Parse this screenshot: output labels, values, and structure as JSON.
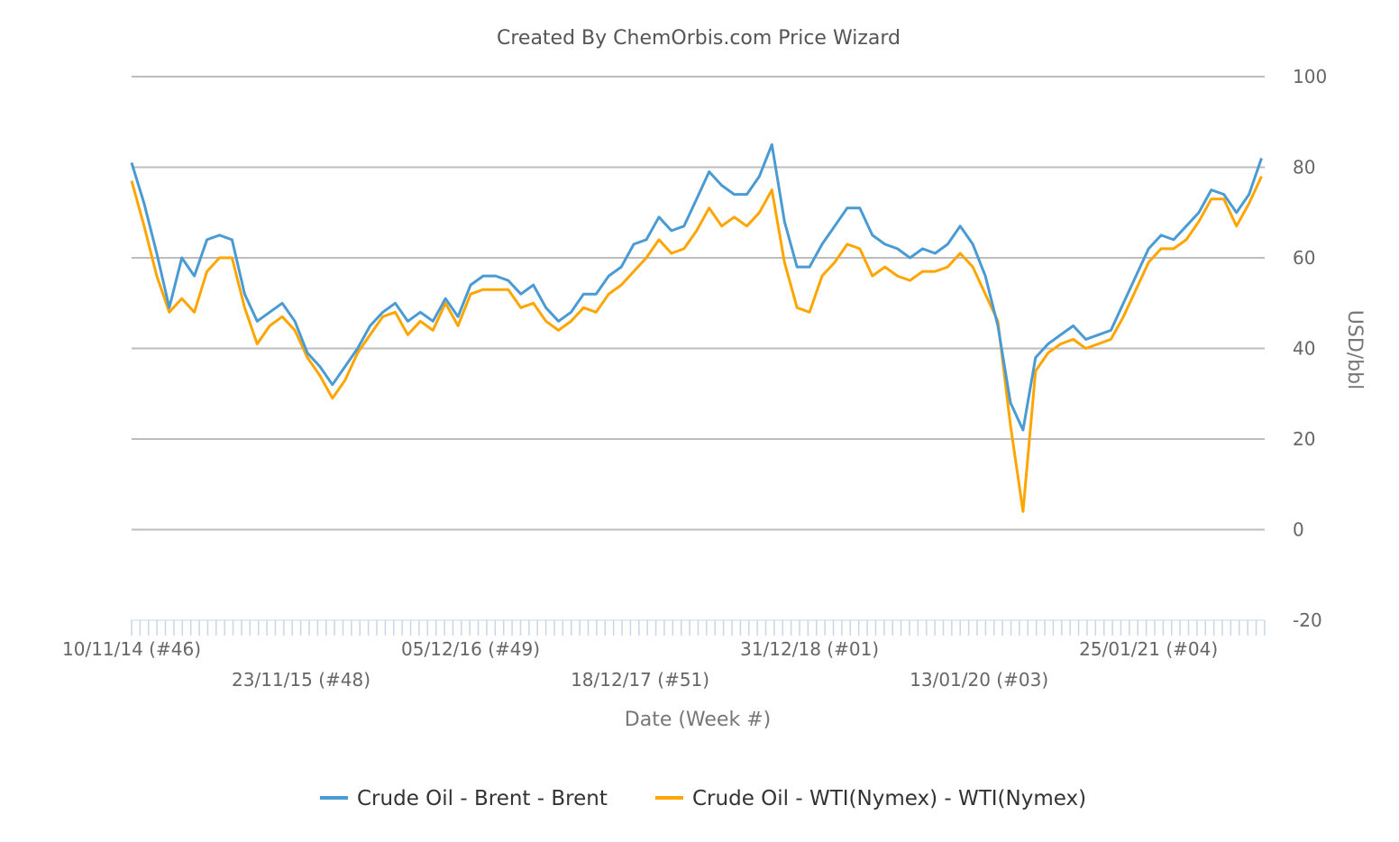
{
  "chart_data": {
    "type": "line",
    "title": "Created By ChemOrbis.com Price Wizard",
    "xlabel": "Date (Week #)",
    "ylabel": "USD/bbl",
    "ylim": [
      -20,
      100
    ],
    "yticks": [
      -20,
      0,
      20,
      40,
      60,
      80,
      100
    ],
    "xlim": [
      "2014-11-10",
      "2021-10-11"
    ],
    "xtick_labels": [
      {
        "date": "2014-11-10",
        "label": "10/11/14 (#46)"
      },
      {
        "date": "2015-11-23",
        "label": "23/11/15 (#48)"
      },
      {
        "date": "2016-12-05",
        "label": "05/12/16 (#49)"
      },
      {
        "date": "2017-12-18",
        "label": "18/12/17 (#51)"
      },
      {
        "date": "2018-12-31",
        "label": "31/12/18 (#01)"
      },
      {
        "date": "2020-01-13",
        "label": "13/01/20 (#03)"
      },
      {
        "date": "2021-01-25",
        "label": "25/01/21 (#04)"
      }
    ],
    "grid": true,
    "y_axis_position": "right",
    "legend_position": "bottom",
    "x": [
      "2014-11-10",
      "2014-12-08",
      "2015-01-05",
      "2015-02-02",
      "2015-03-02",
      "2015-03-30",
      "2015-04-27",
      "2015-05-25",
      "2015-06-22",
      "2015-07-20",
      "2015-08-17",
      "2015-09-14",
      "2015-10-12",
      "2015-11-09",
      "2015-12-07",
      "2016-01-04",
      "2016-02-01",
      "2016-02-29",
      "2016-03-28",
      "2016-04-25",
      "2016-05-23",
      "2016-06-20",
      "2016-07-18",
      "2016-08-15",
      "2016-09-12",
      "2016-10-10",
      "2016-11-07",
      "2016-12-05",
      "2017-01-02",
      "2017-01-30",
      "2017-02-27",
      "2017-03-27",
      "2017-04-24",
      "2017-05-22",
      "2017-06-19",
      "2017-07-17",
      "2017-08-14",
      "2017-09-11",
      "2017-10-09",
      "2017-11-06",
      "2017-12-04",
      "2018-01-01",
      "2018-01-29",
      "2018-02-26",
      "2018-03-26",
      "2018-04-23",
      "2018-05-21",
      "2018-06-18",
      "2018-07-16",
      "2018-08-13",
      "2018-09-10",
      "2018-10-08",
      "2018-11-05",
      "2018-12-03",
      "2018-12-31",
      "2019-01-28",
      "2019-02-25",
      "2019-03-25",
      "2019-04-22",
      "2019-05-20",
      "2019-06-17",
      "2019-07-15",
      "2019-08-12",
      "2019-09-09",
      "2019-10-07",
      "2019-11-04",
      "2019-12-02",
      "2019-12-30",
      "2020-01-27",
      "2020-02-24",
      "2020-03-23",
      "2020-04-20",
      "2020-05-18",
      "2020-06-15",
      "2020-07-13",
      "2020-08-10",
      "2020-09-07",
      "2020-10-05",
      "2020-11-02",
      "2020-11-30",
      "2020-12-28",
      "2021-01-25",
      "2021-02-22",
      "2021-03-22",
      "2021-04-19",
      "2021-05-17",
      "2021-06-14",
      "2021-07-12",
      "2021-08-09",
      "2021-09-06",
      "2021-10-04"
    ],
    "series": [
      {
        "name": "Crude Oil - Brent - Brent",
        "color": "#4a9ad4",
        "values": [
          81,
          72,
          61,
          49,
          60,
          56,
          64,
          65,
          64,
          52,
          46,
          48,
          50,
          46,
          39,
          36,
          32,
          36,
          40,
          45,
          48,
          50,
          46,
          48,
          46,
          51,
          47,
          54,
          56,
          56,
          55,
          52,
          54,
          49,
          46,
          48,
          52,
          52,
          56,
          58,
          63,
          64,
          69,
          66,
          67,
          73,
          79,
          76,
          74,
          74,
          78,
          85,
          68,
          58,
          58,
          63,
          67,
          71,
          71,
          65,
          63,
          62,
          60,
          62,
          61,
          63,
          67,
          63,
          56,
          45,
          28,
          22,
          38,
          41,
          43,
          45,
          42,
          43,
          44,
          50,
          56,
          62,
          65,
          64,
          67,
          70,
          75,
          74,
          70,
          74,
          82
        ]
      },
      {
        "name": "Crude Oil - WTI(Nymex) - WTI(Nymex)",
        "color": "#ffa500",
        "values": [
          77,
          67,
          56,
          48,
          51,
          48,
          57,
          60,
          60,
          49,
          41,
          45,
          47,
          44,
          38,
          34,
          29,
          33,
          39,
          43,
          47,
          48,
          43,
          46,
          44,
          50,
          45,
          52,
          53,
          53,
          53,
          49,
          50,
          46,
          44,
          46,
          49,
          48,
          52,
          54,
          57,
          60,
          64,
          61,
          62,
          66,
          71,
          67,
          69,
          67,
          70,
          75,
          59,
          49,
          48,
          56,
          59,
          63,
          62,
          56,
          58,
          56,
          55,
          57,
          57,
          58,
          61,
          58,
          52,
          46,
          23,
          4,
          35,
          39,
          41,
          42,
          40,
          41,
          42,
          47,
          53,
          59,
          62,
          62,
          64,
          68,
          73,
          73,
          67,
          72,
          78
        ]
      }
    ]
  }
}
